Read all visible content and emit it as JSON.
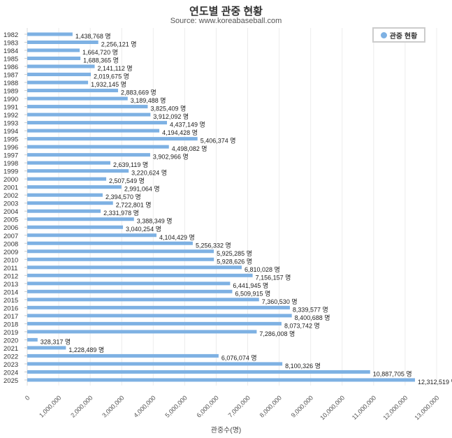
{
  "chart_data": {
    "type": "bar",
    "orientation": "horizontal",
    "title": "연도별 관중 현황",
    "subtitle": "Source: www.koreabaseball.com",
    "xlabel": "관중수(명)",
    "ylabel": "",
    "xlim": [
      0,
      13000000
    ],
    "x_ticks": [
      "0",
      "1,000,000",
      "2,000,000",
      "3,000,000",
      "4,000,000",
      "5,000,000",
      "6,000,000",
      "7,000,000",
      "8,000,000",
      "9,000,000",
      "10,000,000",
      "11,000,000",
      "12,000,000",
      "13,000,000"
    ],
    "grid": true,
    "legend": {
      "placement": "top-right",
      "entries": [
        "관중 현황"
      ]
    },
    "value_suffix": " 명",
    "bar_color": "#7eb1e3",
    "categories": [
      "1982",
      "1983",
      "1984",
      "1985",
      "1986",
      "1987",
      "1988",
      "1989",
      "1990",
      "1991",
      "1992",
      "1993",
      "1994",
      "1995",
      "1996",
      "1997",
      "1998",
      "1999",
      "2000",
      "2001",
      "2002",
      "2003",
      "2004",
      "2005",
      "2006",
      "2007",
      "2008",
      "2009",
      "2010",
      "2011",
      "2012",
      "2013",
      "2014",
      "2015",
      "2016",
      "2017",
      "2018",
      "2019",
      "2020",
      "2021",
      "2022",
      "2023",
      "2024",
      "2025"
    ],
    "series": [
      {
        "name": "관중 현황",
        "values": [
          1438768,
          2256121,
          1664720,
          1688365,
          2141112,
          2019675,
          1932145,
          2883669,
          3189488,
          3825409,
          3912092,
          4437149,
          4194428,
          5406374,
          4498082,
          3902966,
          2639119,
          3220624,
          2507549,
          2991064,
          2394570,
          2722801,
          2331978,
          3388349,
          3040254,
          4104429,
          5256332,
          5925285,
          5928626,
          6810028,
          7156157,
          6441945,
          6509915,
          7360530,
          8339577,
          8400688,
          8073742,
          7286008,
          328317,
          1228489,
          6076074,
          8100326,
          10887705,
          12312519
        ]
      }
    ]
  }
}
